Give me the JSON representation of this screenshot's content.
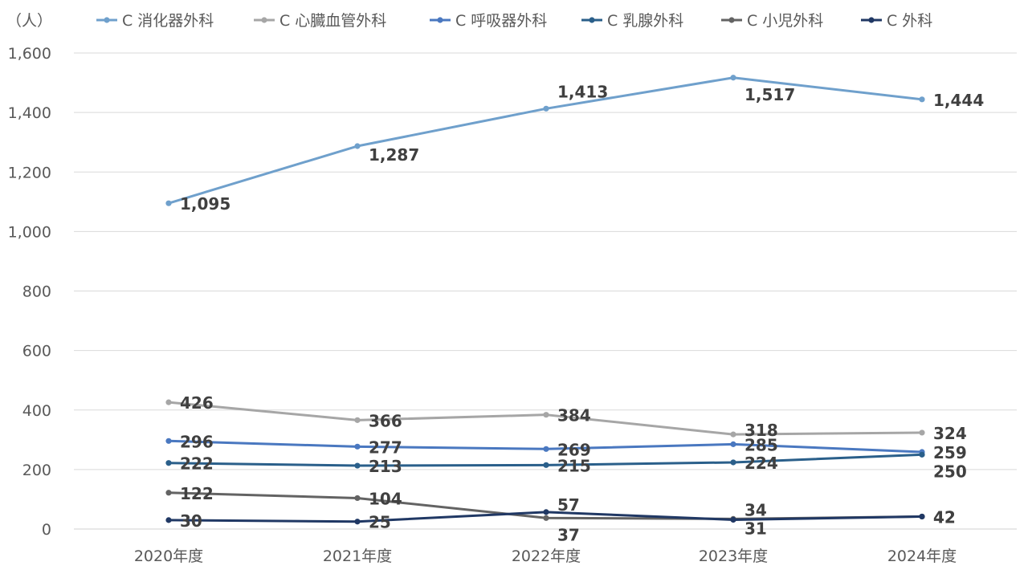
{
  "chart_data": {
    "type": "line",
    "title": "",
    "xlabel": "",
    "ylabel": "",
    "unit_label": "（人）",
    "categories": [
      "2020年度",
      "2021年度",
      "2022年度",
      "2023年度",
      "2024年度"
    ],
    "ylim": [
      0,
      1600
    ],
    "yticks": [
      0,
      200,
      400,
      600,
      800,
      1000,
      1200,
      1400,
      1600
    ],
    "ytick_labels": [
      "0",
      "200",
      "400",
      "600",
      "800",
      "1,000",
      "1,200",
      "1,400",
      "1,600"
    ],
    "grid": true,
    "legend_position": "top",
    "series": [
      {
        "name": "C 消化器外科",
        "color": "#6fa0cc",
        "values": [
          1095,
          1287,
          1413,
          1517,
          1444
        ],
        "labels": [
          "1,095",
          "1,287",
          "1,413",
          "1,517",
          "1,444"
        ]
      },
      {
        "name": "C 心臓血管外科",
        "color": "#a6a6a6",
        "values": [
          426,
          366,
          384,
          318,
          324
        ],
        "labels": [
          "426",
          "366",
          "384",
          "318",
          "324"
        ]
      },
      {
        "name": "C 呼吸器外科",
        "color": "#4a78c0",
        "values": [
          296,
          277,
          269,
          285,
          259
        ],
        "labels": [
          "296",
          "277",
          "269",
          "285",
          "259"
        ]
      },
      {
        "name": "C 乳腺外科",
        "color": "#2a5f8a",
        "values": [
          222,
          213,
          215,
          224,
          250
        ],
        "labels": [
          "222",
          "213",
          "215",
          "224",
          "250"
        ]
      },
      {
        "name": "C 小児外科",
        "color": "#636363",
        "values": [
          122,
          104,
          37,
          34,
          42
        ],
        "labels": [
          "122",
          "104",
          "37",
          "34",
          "42"
        ]
      },
      {
        "name": "C 外科",
        "color": "#203864",
        "values": [
          30,
          25,
          57,
          31,
          42
        ],
        "labels": [
          "30",
          "25",
          "57",
          "31",
          "42"
        ]
      }
    ]
  }
}
